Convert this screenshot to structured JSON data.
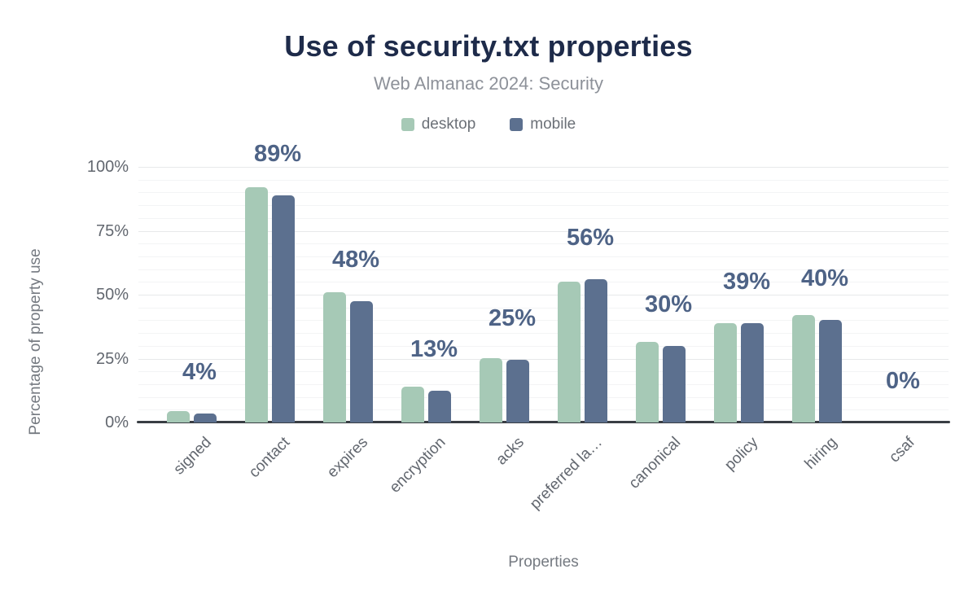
{
  "colors": {
    "background": "#ffffff",
    "title": "#1e2b4a",
    "subtitle": "#8d9199",
    "legend_text": "#6b7077",
    "axis_text": "#62676f",
    "axis_title": "#757a81",
    "bar_label": "#4e6386",
    "desktop": "#a6c9b6",
    "mobile": "#5c708f",
    "grid_major": "#e7e9ea",
    "grid_minor": "#f3f4f5",
    "baseline": "#393e44"
  },
  "chart_data": {
    "type": "bar",
    "title": "Use of security.txt properties",
    "subtitle": "Web Almanac 2024: Security",
    "xlabel": "Properties",
    "ylabel": "Percentage of property use",
    "categories": [
      "signed",
      "contact",
      "expires",
      "encryption",
      "acks",
      "preferred la…",
      "canonical",
      "policy",
      "hiring",
      "csaf"
    ],
    "series": [
      {
        "name": "desktop",
        "values": [
          4.3,
          92,
          51,
          14,
          25,
          55,
          31.5,
          39,
          42,
          0
        ]
      },
      {
        "name": "mobile",
        "values": [
          3.6,
          89,
          47.5,
          12.5,
          24.5,
          56,
          30,
          39,
          40,
          0
        ]
      }
    ],
    "bar_labels": [
      "4%",
      "89%",
      "48%",
      "13%",
      "25%",
      "56%",
      "30%",
      "39%",
      "40%",
      "0%"
    ],
    "y_ticks": [
      {
        "value": 0,
        "label": "0%"
      },
      {
        "value": 25,
        "label": "25%"
      },
      {
        "value": 50,
        "label": "50%"
      },
      {
        "value": 75,
        "label": "75%"
      },
      {
        "value": 100,
        "label": "100%"
      }
    ],
    "ylim": [
      0,
      100
    ],
    "grid": {
      "minor_step": 5,
      "major_step": 25,
      "visible": true
    },
    "legend": {
      "position": "top",
      "items": [
        "desktop",
        "mobile"
      ]
    }
  }
}
